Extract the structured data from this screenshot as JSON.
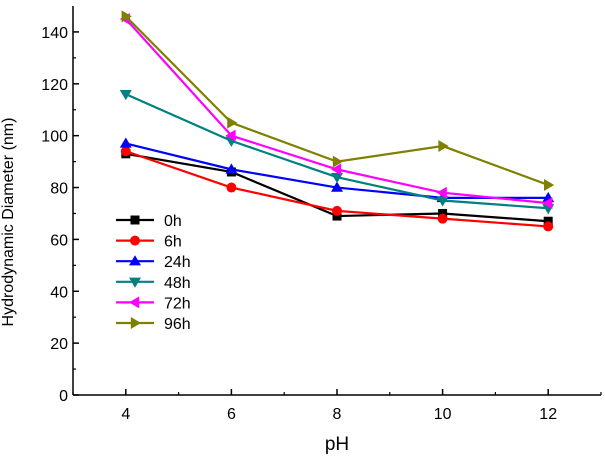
{
  "chart_data": {
    "type": "line",
    "title": "",
    "xlabel": "pH",
    "ylabel": "Hydrodynamic Diameter (nm)",
    "xlim": [
      3,
      13
    ],
    "ylim": [
      0,
      150
    ],
    "xticks": [
      4,
      6,
      8,
      10,
      12
    ],
    "yticks": [
      0,
      20,
      40,
      60,
      80,
      100,
      120,
      140
    ],
    "grid": false,
    "legend_position": "center-left",
    "x": [
      4,
      6,
      8,
      10,
      12
    ],
    "series": [
      {
        "name": "0h",
        "color": "#000000",
        "marker": "square",
        "values": [
          93,
          86,
          69,
          70,
          67
        ]
      },
      {
        "name": "6h",
        "color": "#ff0000",
        "marker": "circle",
        "values": [
          94,
          80,
          71,
          68,
          65
        ]
      },
      {
        "name": "24h",
        "color": "#0000ff",
        "marker": "triangle-up",
        "values": [
          97,
          87,
          80,
          76,
          76
        ]
      },
      {
        "name": "48h",
        "color": "#008080",
        "marker": "triangle-down",
        "values": [
          116,
          98,
          84,
          75,
          72
        ]
      },
      {
        "name": "72h",
        "color": "#ff00ff",
        "marker": "triangle-left",
        "values": [
          145,
          100,
          87,
          78,
          74
        ]
      },
      {
        "name": "96h",
        "color": "#808000",
        "marker": "triangle-right",
        "values": [
          146,
          105,
          90,
          96,
          81
        ]
      }
    ]
  }
}
